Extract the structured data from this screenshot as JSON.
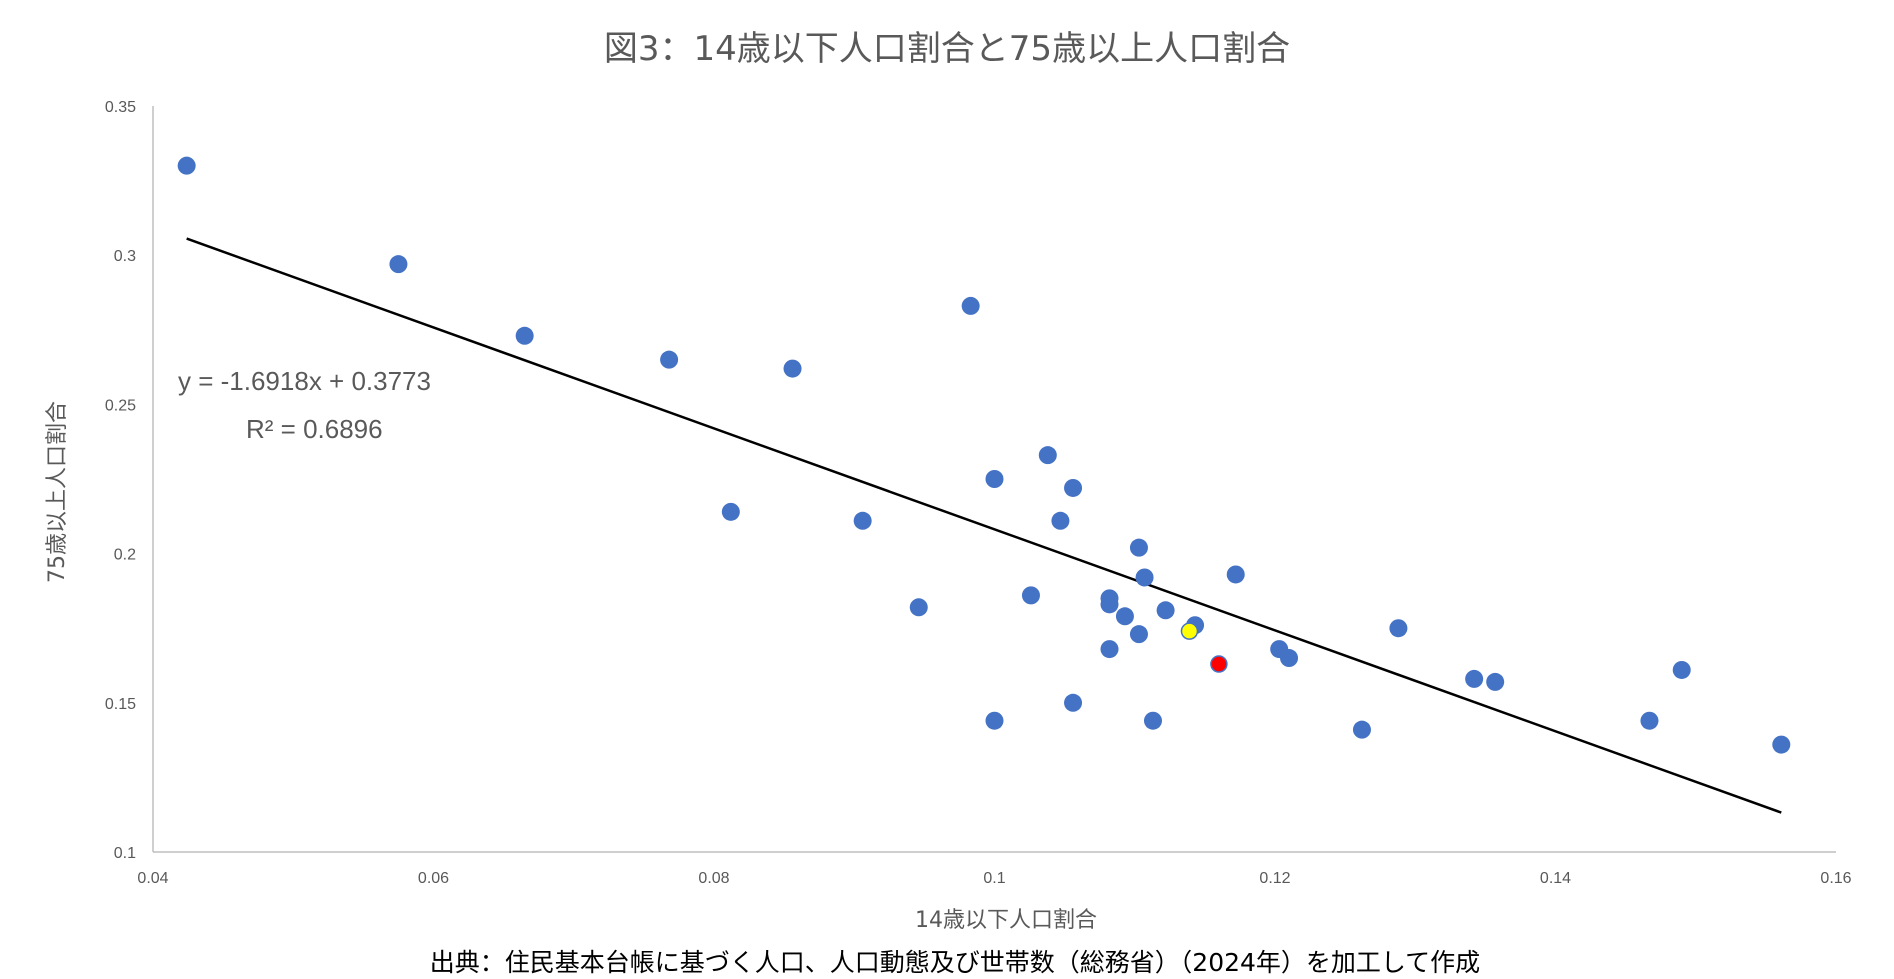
{
  "chart_data": {
    "type": "scatter",
    "title": "図3：14歳以下人口割合と75歳以上人口割合",
    "xlabel": "14歳以下人口割合",
    "ylabel": "75歳以上人口割合",
    "xlim": [
      0.04,
      0.16
    ],
    "ylim": [
      0.1,
      0.35
    ],
    "xticks": [
      "0.04",
      "0.06",
      "0.08",
      "0.1",
      "0.12",
      "0.14",
      "0.16"
    ],
    "yticks": [
      "0.1",
      "0.15",
      "0.2",
      "0.25",
      "0.3",
      "0.35"
    ],
    "grid": false,
    "colors": {
      "points": "#4472C4",
      "highlight_red": "#FF0000",
      "highlight_yellow": "#FFFF00",
      "trendline": "#000000"
    },
    "points": [
      {
        "x": 0.0424,
        "y": 0.33
      },
      {
        "x": 0.0575,
        "y": 0.297
      },
      {
        "x": 0.0665,
        "y": 0.273
      },
      {
        "x": 0.0768,
        "y": 0.265
      },
      {
        "x": 0.0856,
        "y": 0.262
      },
      {
        "x": 0.0812,
        "y": 0.214
      },
      {
        "x": 0.0906,
        "y": 0.211
      },
      {
        "x": 0.0946,
        "y": 0.182
      },
      {
        "x": 0.0983,
        "y": 0.283
      },
      {
        "x": 0.1,
        "y": 0.225
      },
      {
        "x": 0.1,
        "y": 0.144
      },
      {
        "x": 0.1026,
        "y": 0.186
      },
      {
        "x": 0.1038,
        "y": 0.233
      },
      {
        "x": 0.1047,
        "y": 0.211
      },
      {
        "x": 0.1056,
        "y": 0.222
      },
      {
        "x": 0.1056,
        "y": 0.15
      },
      {
        "x": 0.1082,
        "y": 0.185
      },
      {
        "x": 0.1082,
        "y": 0.183
      },
      {
        "x": 0.1082,
        "y": 0.168
      },
      {
        "x": 0.1093,
        "y": 0.179
      },
      {
        "x": 0.1103,
        "y": 0.202
      },
      {
        "x": 0.1103,
        "y": 0.173
      },
      {
        "x": 0.1107,
        "y": 0.192
      },
      {
        "x": 0.1113,
        "y": 0.144
      },
      {
        "x": 0.1122,
        "y": 0.181
      },
      {
        "x": 0.1143,
        "y": 0.176
      },
      {
        "x": 0.1172,
        "y": 0.193
      },
      {
        "x": 0.1203,
        "y": 0.168
      },
      {
        "x": 0.121,
        "y": 0.165
      },
      {
        "x": 0.1262,
        "y": 0.141
      },
      {
        "x": 0.1288,
        "y": 0.175
      },
      {
        "x": 0.1342,
        "y": 0.158
      },
      {
        "x": 0.1357,
        "y": 0.157
      },
      {
        "x": 0.1467,
        "y": 0.144
      },
      {
        "x": 0.149,
        "y": 0.161
      },
      {
        "x": 0.1561,
        "y": 0.136
      }
    ],
    "highlights": [
      {
        "x": 0.1139,
        "y": 0.174,
        "color": "#FFFF00"
      },
      {
        "x": 0.116,
        "y": 0.163,
        "color": "#FF0000"
      }
    ],
    "trendline": {
      "x_start": 0.0424,
      "x_end": 0.1561,
      "slope": -1.6918,
      "intercept": 0.3773,
      "equation": "y = -1.6918x + 0.3773",
      "r2": "R² = 0.6896"
    }
  },
  "source_note": "出典：住民基本台帳に基づく人口、人口動態及び世帯数（総務省）（2024年）を加工して作成"
}
